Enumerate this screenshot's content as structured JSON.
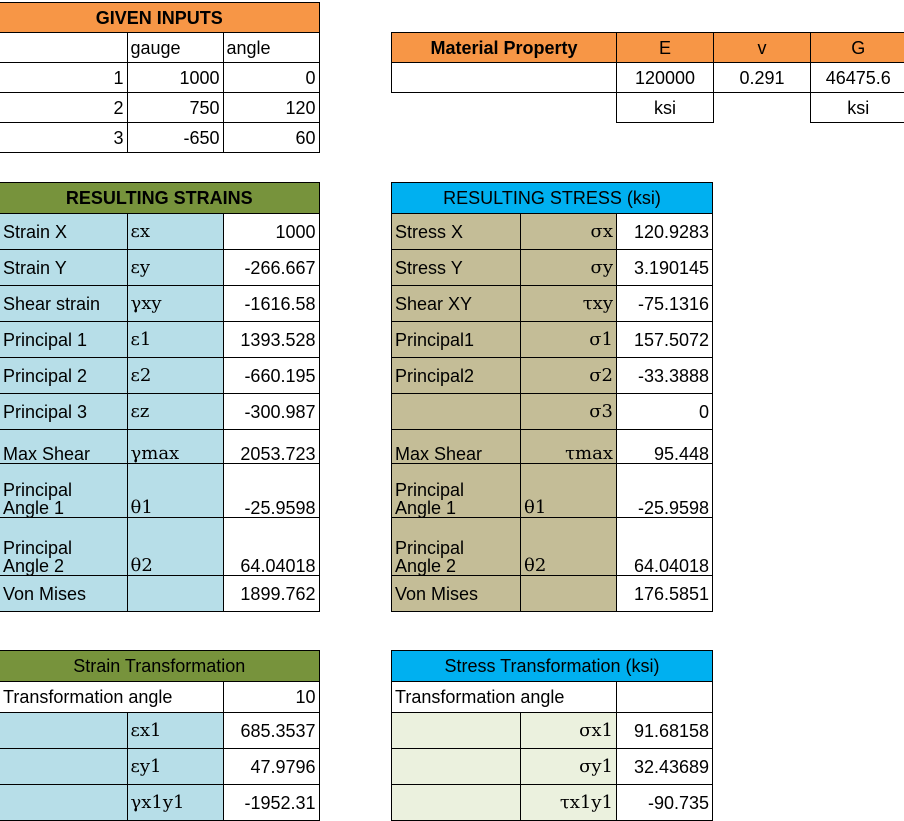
{
  "given": {
    "title": "GIVEN INPUTS",
    "col_gauge": "gauge",
    "col_angle": "angle",
    "rows": [
      {
        "n": "1",
        "gauge": "1000",
        "angle": "0"
      },
      {
        "n": "2",
        "gauge": "750",
        "angle": "120"
      },
      {
        "n": "3",
        "gauge": "-650",
        "angle": "60"
      }
    ]
  },
  "material": {
    "title": "Material Property",
    "E_label": "E",
    "v_label": "v",
    "G_label": "G",
    "E": "120000",
    "v": "0.291",
    "G": "46475.6",
    "E_unit": "ksi",
    "G_unit": "ksi"
  },
  "strains": {
    "title": "RESULTING STRAINS",
    "rows": [
      {
        "label": "Strain X",
        "sym": "εx",
        "value": "1000"
      },
      {
        "label": "Strain Y",
        "sym": "εy",
        "value": "-266.667"
      },
      {
        "label": "Shear strain",
        "sym": "γxy",
        "value": "-1616.58"
      },
      {
        "label": "Principal 1",
        "sym": "ε1",
        "value": "1393.528"
      },
      {
        "label": "Principal 2",
        "sym": "ε2",
        "value": "-660.195"
      },
      {
        "label": "Principal 3",
        "sym": "εz",
        "value": "-300.987"
      },
      {
        "label": "Max Shear",
        "sym": "γmax",
        "value": "2053.723"
      }
    ],
    "angle1": {
      "label_a": "Principal",
      "label_b": "Angle 1",
      "sym": "θ1",
      "value": "-25.9598"
    },
    "angle2": {
      "label_a": "Principal",
      "label_b": "Angle 2",
      "sym": "θ2",
      "value": "64.04018"
    },
    "vonmises": {
      "label": "Von Mises",
      "value": "1899.762"
    }
  },
  "stress": {
    "title": "RESULTING STRESS (ksi)",
    "rows": [
      {
        "label": "Stress X",
        "sym": "σx",
        "value": "120.9283"
      },
      {
        "label": "Stress Y",
        "sym": "σy",
        "value": "3.190145"
      },
      {
        "label": "Shear XY",
        "sym": "τxy",
        "value": "-75.1316"
      },
      {
        "label": "Principal1",
        "sym": "σ1",
        "value": "157.5072"
      },
      {
        "label": "Principal2",
        "sym": "σ2",
        "value": "-33.3888"
      },
      {
        "label": "",
        "sym": "σ3",
        "value": "0"
      },
      {
        "label": "Max Shear",
        "sym": "τmax",
        "value": "95.448"
      }
    ],
    "angle1": {
      "label_a": "Principal",
      "label_b": "Angle 1",
      "sym": "θ1",
      "value": "-25.9598"
    },
    "angle2": {
      "label_a": "Principal",
      "label_b": "Angle 2",
      "sym": "θ2",
      "value": "64.04018"
    },
    "vonmises": {
      "label": "Von Mises",
      "value": "176.5851"
    }
  },
  "strain_tf": {
    "title": "Strain Transformation",
    "angle_label": "Transformation angle",
    "angle_value": "10",
    "rows": [
      {
        "sym": "εx1",
        "value": "685.3537"
      },
      {
        "sym": "εy1",
        "value": "47.9796"
      },
      {
        "sym": "γx1y1",
        "value": "-1952.31"
      }
    ]
  },
  "stress_tf": {
    "title": "Stress Transformation (ksi)",
    "angle_label": "Transformation angle",
    "angle_value": "",
    "rows": [
      {
        "sym": "σx1",
        "value": "91.68158"
      },
      {
        "sym": "σy1",
        "value": "32.43689"
      },
      {
        "sym": "τx1y1",
        "value": "-90.735"
      }
    ]
  }
}
